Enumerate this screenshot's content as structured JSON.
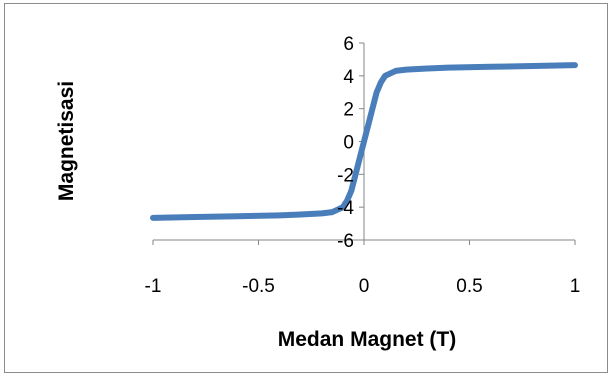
{
  "chart_data": {
    "type": "line",
    "title": "",
    "xlabel": "Medan Magnet (T)",
    "ylabel": "Magnetisasi",
    "xlim": [
      -1,
      1
    ],
    "ylim": [
      -6,
      6
    ],
    "x_ticks": [
      "-1",
      "-0.5",
      "0",
      "0.5",
      "1"
    ],
    "y_ticks": [
      "6",
      "4",
      "2",
      "0",
      "-2",
      "-4",
      "-6"
    ],
    "grid": false,
    "legend": "none",
    "series": [
      {
        "color": "#4a7ebb",
        "x": [
          -1,
          -0.8,
          -0.6,
          -0.4,
          -0.3,
          -0.2,
          -0.15,
          -0.1,
          -0.08,
          -0.06,
          -0.04,
          -0.02,
          0,
          0.02,
          0.04,
          0.06,
          0.08,
          0.1,
          0.15,
          0.2,
          0.3,
          0.4,
          0.6,
          0.8,
          1
        ],
        "y": [
          -4.65,
          -4.6,
          -4.55,
          -4.5,
          -4.45,
          -4.38,
          -4.3,
          -4.0,
          -3.6,
          -3.0,
          -2.0,
          -1.0,
          0,
          1.0,
          2.0,
          3.0,
          3.6,
          4.0,
          4.3,
          4.38,
          4.45,
          4.5,
          4.55,
          4.6,
          4.65
        ]
      }
    ]
  }
}
